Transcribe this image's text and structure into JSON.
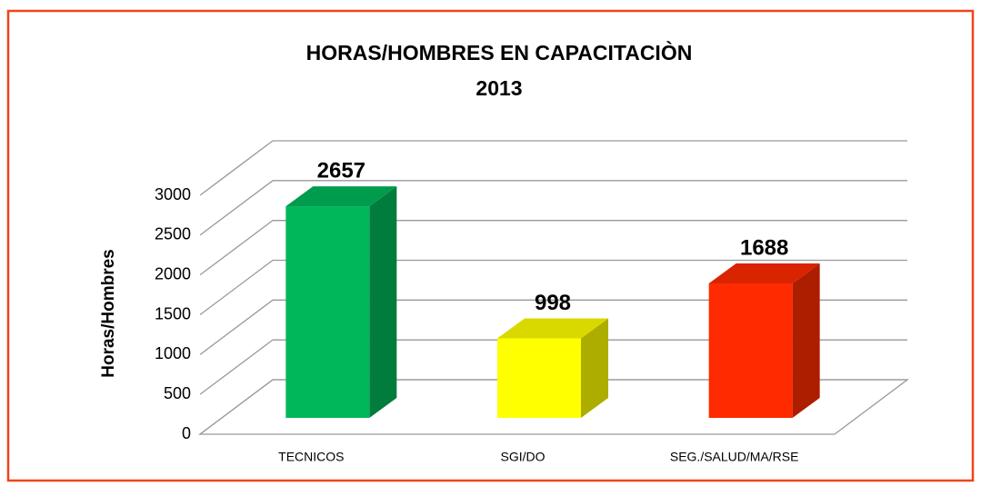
{
  "chart_data": {
    "type": "bar3d",
    "title": "HORAS/HOMBRES  EN CAPACITACIÒN",
    "subtitle": "2013",
    "y_label": "Horas/Hombres",
    "categories": [
      "TECNICOS",
      "SGI/DO",
      "SEG./SALUD/MA/RSE"
    ],
    "values": [
      2657,
      998,
      1688
    ],
    "colors": [
      "#00b75a",
      "#ffff00",
      "#ff2a00"
    ],
    "ylim": [
      0,
      3000
    ],
    "yticks": [
      0,
      500,
      1000,
      1500,
      2000,
      2500,
      3000
    ],
    "grid": true
  }
}
